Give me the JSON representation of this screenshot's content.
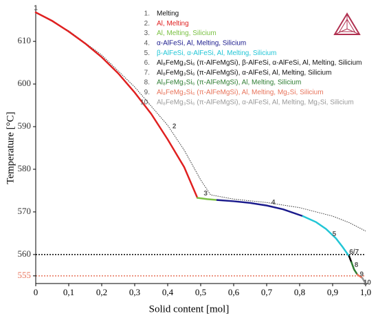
{
  "chart_data": {
    "type": "line",
    "xlabel": "Solid content [mol]",
    "ylabel": "Temperature [°C]",
    "xlim": [
      0,
      1
    ],
    "ylim": [
      553.2,
      616.8
    ],
    "xticks": [
      0,
      {
        "value": 0.1,
        "label": "0,1"
      },
      {
        "value": 0.2,
        "label": "0,2"
      },
      {
        "value": 0.3,
        "label": "0,3"
      },
      {
        "value": 0.4,
        "label": "0,4"
      },
      {
        "value": 0.5,
        "label": "0,5"
      },
      {
        "value": 0.6,
        "label": "0,6"
      },
      {
        "value": 0.7,
        "label": "0,7"
      },
      {
        "value": 0.8,
        "label": "0,8"
      },
      {
        "value": 0.9,
        "label": "0,9"
      },
      {
        "value": 1,
        "label": "1,0"
      }
    ],
    "yticks": [
      555,
      560,
      570,
      580,
      590,
      600,
      610
    ],
    "hlines": [
      {
        "value": 560,
        "color": "#000000"
      },
      {
        "value": 555,
        "color": "#e8735a"
      }
    ],
    "equilibrium": {
      "color": "#333333",
      "x": [
        0,
        0.1,
        0.2,
        0.3,
        0.4,
        0.45,
        0.5,
        0.53,
        0.6,
        0.7,
        0.8,
        0.9,
        0.95,
        1.0
      ],
      "values": [
        616.8,
        612.5,
        606.8,
        599.3,
        590.3,
        584.5,
        577.5,
        574,
        573,
        572.2,
        571,
        569,
        567.5,
        565.5
      ]
    },
    "series": [
      {
        "num": "1.",
        "name": "Melting",
        "color": "#000000",
        "x": [
          0
        ],
        "values": [
          616.8
        ]
      },
      {
        "num": "2.",
        "name": "Al, Melting",
        "color": "#e02020",
        "x": [
          0,
          0.05,
          0.1,
          0.15,
          0.2,
          0.25,
          0.3,
          0.35,
          0.4,
          0.45,
          0.49
        ],
        "values": [
          616.8,
          614.8,
          612.3,
          609.5,
          606.3,
          602.5,
          598,
          593,
          587,
          580.5,
          573.3
        ]
      },
      {
        "num": "3.",
        "name": "Al, Melting, Silicium",
        "color": "#7ac143",
        "x": [
          0.49,
          0.52,
          0.55
        ],
        "values": [
          573.3,
          573.0,
          572.8
        ]
      },
      {
        "num": "4.",
        "name": "α-AlFeSi, Al, Melting, Silicium",
        "color": "#1a1a8c",
        "x": [
          0.55,
          0.6,
          0.65,
          0.7,
          0.75,
          0.81
        ],
        "values": [
          572.8,
          572.5,
          572.1,
          571.5,
          570.6,
          569.0
        ]
      },
      {
        "num": "5.",
        "name": "β-AlFeSi, α-AlFeSi, Al, Melting, Silicium",
        "color": "#22c6d6",
        "x": [
          0.81,
          0.85,
          0.88,
          0.91,
          0.93,
          0.95
        ],
        "values": [
          569.0,
          567.6,
          566,
          563.8,
          561.8,
          559.6
        ]
      },
      {
        "num": "6.",
        "name": "Al₈FeMg₃Si₆ (π-AlFeMgSi), β-AlFeSi, α-AlFeSi, Al, Melting, Silicium",
        "color": "#000000",
        "x": [
          0.95,
          0.953
        ],
        "values": [
          559.6,
          559.0
        ]
      },
      {
        "num": "7.",
        "name": "Al₈FeMg₃Si₆ (π-AlFeMgSi), α-AlFeSi, Al, Melting, Silicium",
        "color": "#000000",
        "x": [
          0.953,
          0.957
        ],
        "values": [
          559.0,
          558.2
        ]
      },
      {
        "num": "8.",
        "name": "Al₈FeMg₃Si₆ (π-AlFeMgSi), Al, Melting, Silicium",
        "color": "#2e7d32",
        "x": [
          0.957,
          0.965,
          0.975
        ],
        "values": [
          558.2,
          556.5,
          555.3
        ]
      },
      {
        "num": "9.",
        "name": "Al₈FeMg₃Si₆ (π-AlFeMgSi), Al, Melting, Mg₂Si, Silicium",
        "color": "#e8735a",
        "x": [
          0.975,
          0.99
        ],
        "values": [
          555.3,
          554.5
        ]
      },
      {
        "num": "10.",
        "name": "Al₈FeMg₃Si₆ (π-AlFeMgSi), α-AlFeSi, Al, Melting, Mg₂Si, Silicium",
        "color": "#999999",
        "x": [
          0.99,
          1.0
        ],
        "values": [
          554.5,
          553.2
        ]
      }
    ],
    "annotations": [
      {
        "text": "1",
        "x": 0,
        "y": 617.8
      },
      {
        "text": "2",
        "x": 0.42,
        "y": 590
      },
      {
        "text": "3",
        "x": 0.515,
        "y": 574.3
      },
      {
        "text": "4",
        "x": 0.72,
        "y": 572.2
      },
      {
        "text": "5",
        "x": 0.905,
        "y": 564.8
      },
      {
        "text": "6/7",
        "x": 0.965,
        "y": 560.6
      },
      {
        "text": "8",
        "x": 0.972,
        "y": 557.5
      },
      {
        "text": "9",
        "x": 0.988,
        "y": 555.3
      },
      {
        "text": "10",
        "x": 1.005,
        "y": 553.4
      }
    ]
  }
}
